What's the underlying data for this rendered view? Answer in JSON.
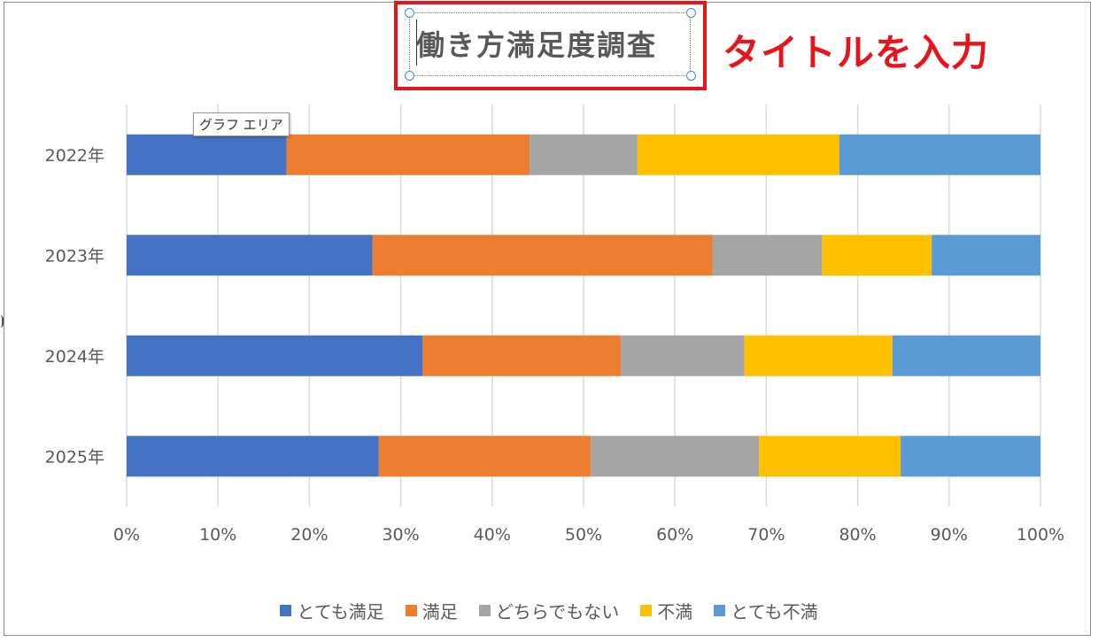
{
  "title": "働き方満足度調査",
  "annotation": "タイトルを入力",
  "tooltip": "グラフ エリア",
  "colors": {
    "title_frame": "#e8141c",
    "annotation": "#e8141c",
    "gridline": "#d9d9d9",
    "axis_text": "#595959",
    "handle": "#3a8bd8"
  },
  "chart_data": {
    "type": "bar",
    "orientation": "horizontal",
    "stacking": "percent",
    "title": "働き方満足度調査",
    "categories": [
      "2022年",
      "2023年",
      "2024年",
      "2025年"
    ],
    "series": [
      {
        "name": "とても満足",
        "color": "#4472c4",
        "values": [
          17.5,
          26.9,
          32.4,
          27.6
        ]
      },
      {
        "name": "満足",
        "color": "#ed7d31",
        "values": [
          26.6,
          37.2,
          21.7,
          23.2
        ]
      },
      {
        "name": "どちらでもない",
        "color": "#a5a5a5",
        "values": [
          11.8,
          12.0,
          13.5,
          18.4
        ]
      },
      {
        "name": "不満",
        "color": "#ffc000",
        "values": [
          22.1,
          12.0,
          16.2,
          15.5
        ]
      },
      {
        "name": "とても不満",
        "color": "#5b9bd5",
        "values": [
          22.0,
          11.9,
          16.2,
          15.3
        ]
      }
    ],
    "xticks": [
      "0%",
      "10%",
      "20%",
      "30%",
      "40%",
      "50%",
      "60%",
      "70%",
      "80%",
      "90%",
      "100%"
    ],
    "xlim": [
      0,
      100
    ],
    "grid": true,
    "legend": "bottom"
  }
}
